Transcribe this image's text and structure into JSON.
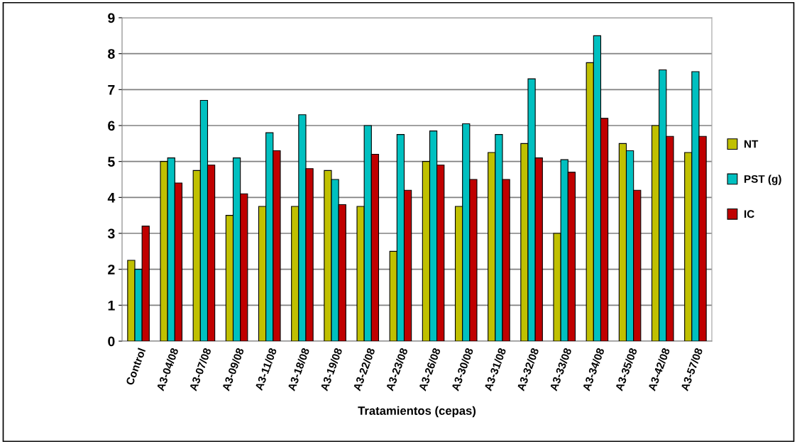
{
  "chart_data": {
    "type": "bar",
    "xlabel": "Tratamientos (cepas)",
    "categories": [
      "Control",
      "A3-04/08",
      "A3-07/08",
      "A3-09/08",
      "A3-11/08",
      "A3-18/08",
      "A3-19/08",
      "A3-22/08",
      "A3-23/08",
      "A3-26/08",
      "A3-30/08",
      "A3-31/08",
      "A3-32/08",
      "A3-33/08",
      "A3-34/08",
      "A3-35/08",
      "A3-42/08",
      "A3-57/08"
    ],
    "series": [
      {
        "name": "NT",
        "color": "#c0c000",
        "values": [
          2.25,
          5.0,
          4.75,
          3.5,
          3.75,
          3.75,
          4.75,
          3.75,
          2.5,
          5.0,
          3.75,
          5.25,
          5.5,
          3.0,
          7.75,
          5.5,
          6.0,
          5.25
        ]
      },
      {
        "name": "PST (g)",
        "color": "#00c0c0",
        "values": [
          2.0,
          5.1,
          6.7,
          5.1,
          5.8,
          6.3,
          4.5,
          6.0,
          5.75,
          5.85,
          6.05,
          5.75,
          7.3,
          5.05,
          8.5,
          5.3,
          7.55,
          7.5
        ]
      },
      {
        "name": "IC",
        "color": "#c00000",
        "values": [
          3.2,
          4.4,
          4.9,
          4.1,
          5.3,
          4.8,
          3.8,
          5.2,
          4.2,
          4.9,
          4.5,
          4.5,
          5.1,
          4.7,
          6.2,
          4.2,
          5.7,
          5.7
        ]
      }
    ],
    "ylim": [
      0,
      9
    ],
    "yticks": [
      0,
      1,
      2,
      3,
      4,
      5,
      6,
      7,
      8,
      9
    ],
    "grid": "y",
    "legend": "right"
  }
}
